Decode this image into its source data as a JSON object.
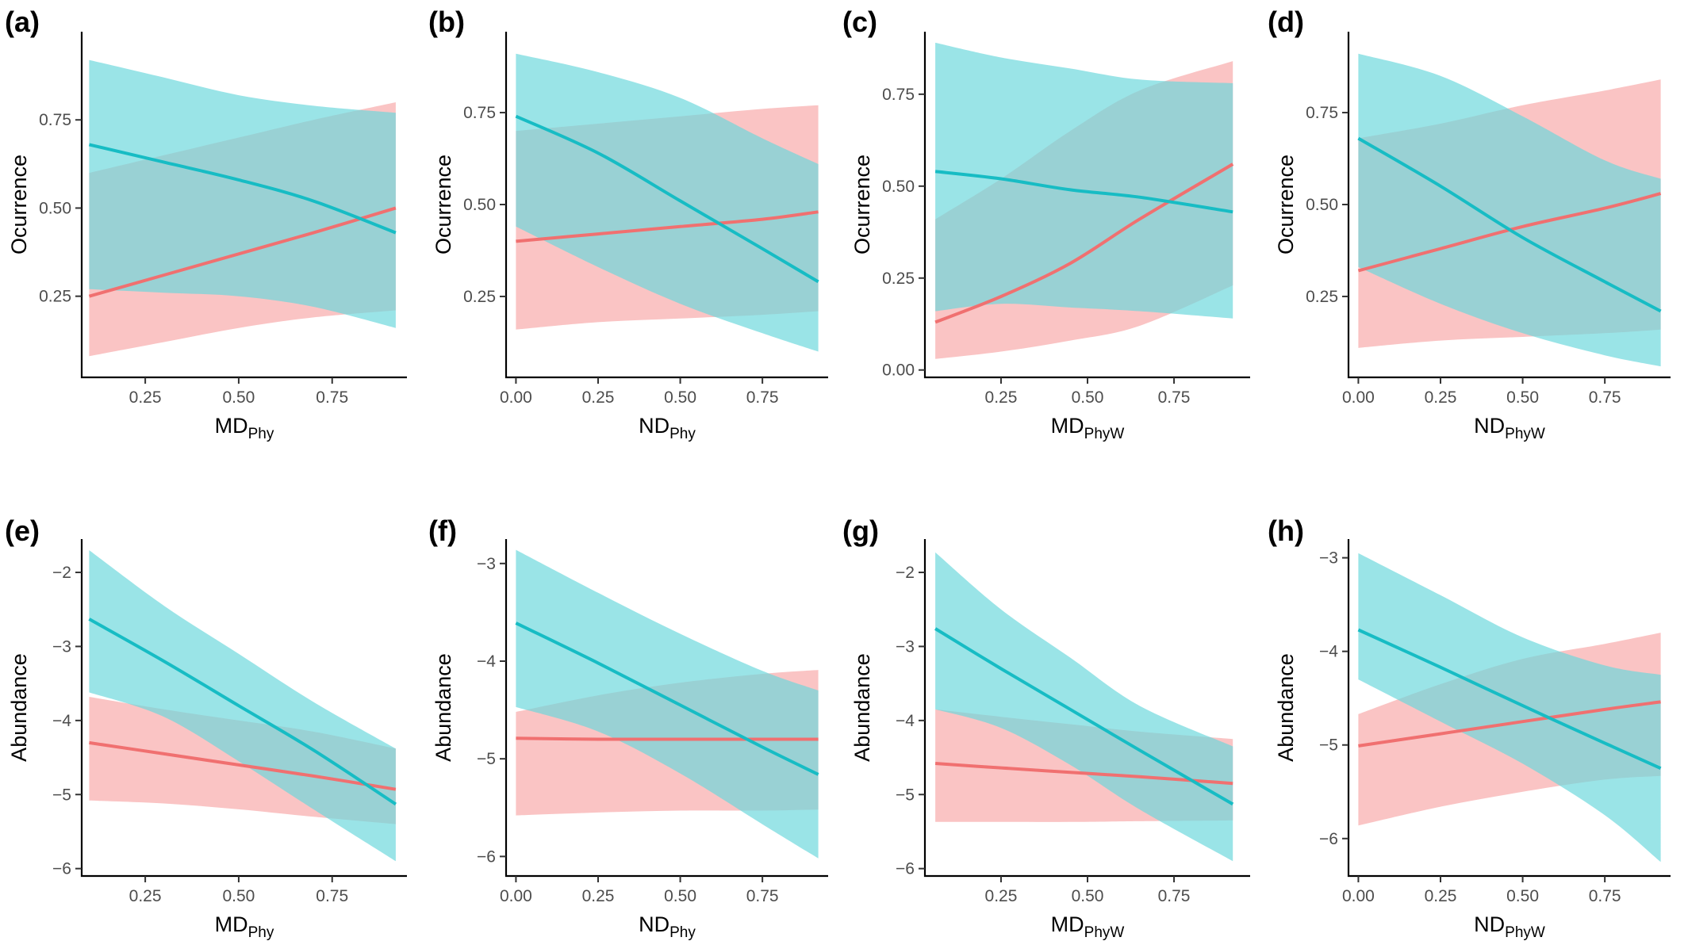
{
  "colors": {
    "series_a_line": "#f07070",
    "series_a_band": "#f8a8a8",
    "series_b_line": "#17bcc4",
    "series_b_band": "#6ad7dc"
  },
  "chart_data": [
    {
      "panel": "(a)",
      "type": "line",
      "xlabel": "MD",
      "xlabel_sub": "Phy",
      "ylabel": "Ocurrence",
      "xlim": [
        0.08,
        0.95
      ],
      "ylim": [
        0.02,
        1.0
      ],
      "xticks": [
        0.25,
        0.5,
        0.75
      ],
      "xtick_labels": [
        "0.25",
        "0.50",
        "0.75"
      ],
      "yticks": [
        0.25,
        0.5,
        0.75
      ],
      "ytick_labels": [
        "0.25",
        "0.50",
        "0.75"
      ],
      "series": [
        {
          "x": [
            0.1,
            0.3,
            0.5,
            0.7,
            0.92
          ],
          "y": [
            0.25,
            0.31,
            0.37,
            0.43,
            0.5
          ],
          "lower": [
            0.08,
            0.12,
            0.16,
            0.19,
            0.21
          ],
          "upper": [
            0.6,
            0.65,
            0.7,
            0.75,
            0.8
          ]
        },
        {
          "x": [
            0.1,
            0.3,
            0.5,
            0.7,
            0.92
          ],
          "y": [
            0.68,
            0.63,
            0.58,
            0.52,
            0.43
          ],
          "lower": [
            0.27,
            0.26,
            0.25,
            0.22,
            0.16
          ],
          "upper": [
            0.92,
            0.87,
            0.82,
            0.79,
            0.77
          ]
        }
      ]
    },
    {
      "panel": "(b)",
      "type": "line",
      "xlabel": "ND",
      "xlabel_sub": "Phy",
      "ylabel": "Ocurrence",
      "xlim": [
        -0.03,
        0.95
      ],
      "ylim": [
        0.03,
        0.97
      ],
      "xticks": [
        0.0,
        0.25,
        0.5,
        0.75
      ],
      "xtick_labels": [
        "0.00",
        "0.25",
        "0.50",
        "0.75"
      ],
      "yticks": [
        0.25,
        0.5,
        0.75
      ],
      "ytick_labels": [
        "0.25",
        "0.50",
        "0.75"
      ],
      "series": [
        {
          "x": [
            0.0,
            0.25,
            0.5,
            0.75,
            0.92
          ],
          "y": [
            0.4,
            0.42,
            0.44,
            0.46,
            0.48
          ],
          "lower": [
            0.16,
            0.18,
            0.19,
            0.2,
            0.21
          ],
          "upper": [
            0.7,
            0.72,
            0.74,
            0.76,
            0.77
          ]
        },
        {
          "x": [
            0.0,
            0.25,
            0.5,
            0.75,
            0.92
          ],
          "y": [
            0.74,
            0.64,
            0.51,
            0.38,
            0.29
          ],
          "lower": [
            0.44,
            0.33,
            0.23,
            0.15,
            0.1
          ],
          "upper": [
            0.91,
            0.86,
            0.79,
            0.68,
            0.61
          ]
        }
      ]
    },
    {
      "panel": "(c)",
      "type": "line",
      "xlabel": "MD",
      "xlabel_sub": "PhyW",
      "ylabel": "Ocurrence",
      "xlim": [
        0.03,
        0.97
      ],
      "ylim": [
        -0.02,
        0.92
      ],
      "xticks": [
        0.25,
        0.5,
        0.75
      ],
      "xtick_labels": [
        "0.25",
        "0.50",
        "0.75"
      ],
      "yticks": [
        0.0,
        0.25,
        0.5,
        0.75
      ],
      "ytick_labels": [
        "0.00",
        "0.25",
        "0.50",
        "0.75"
      ],
      "series": [
        {
          "x": [
            0.06,
            0.25,
            0.45,
            0.65,
            0.92
          ],
          "y": [
            0.13,
            0.2,
            0.29,
            0.41,
            0.56
          ],
          "lower": [
            0.03,
            0.05,
            0.08,
            0.12,
            0.23
          ],
          "upper": [
            0.41,
            0.52,
            0.65,
            0.76,
            0.84
          ]
        },
        {
          "x": [
            0.06,
            0.25,
            0.45,
            0.65,
            0.92
          ],
          "y": [
            0.54,
            0.52,
            0.49,
            0.47,
            0.43
          ],
          "lower": [
            0.16,
            0.18,
            0.17,
            0.16,
            0.14
          ],
          "upper": [
            0.89,
            0.85,
            0.82,
            0.79,
            0.78
          ]
        }
      ]
    },
    {
      "panel": "(d)",
      "type": "line",
      "xlabel": "ND",
      "xlabel_sub": "PhyW",
      "ylabel": "Ocurrence",
      "xlim": [
        -0.03,
        0.95
      ],
      "ylim": [
        0.03,
        0.97
      ],
      "xticks": [
        0.0,
        0.25,
        0.5,
        0.75
      ],
      "xtick_labels": [
        "0.00",
        "0.25",
        "0.50",
        "0.75"
      ],
      "yticks": [
        0.25,
        0.5,
        0.75
      ],
      "ytick_labels": [
        "0.25",
        "0.50",
        "0.75"
      ],
      "series": [
        {
          "x": [
            0.0,
            0.25,
            0.5,
            0.75,
            0.92
          ],
          "y": [
            0.32,
            0.38,
            0.44,
            0.49,
            0.53
          ],
          "lower": [
            0.11,
            0.13,
            0.14,
            0.15,
            0.16
          ],
          "upper": [
            0.68,
            0.72,
            0.77,
            0.81,
            0.84
          ]
        },
        {
          "x": [
            0.0,
            0.25,
            0.5,
            0.75,
            0.92
          ],
          "y": [
            0.68,
            0.55,
            0.41,
            0.29,
            0.21
          ],
          "lower": [
            0.33,
            0.23,
            0.15,
            0.09,
            0.06
          ],
          "upper": [
            0.91,
            0.85,
            0.74,
            0.62,
            0.57
          ]
        }
      ]
    },
    {
      "panel": "(e)",
      "type": "line",
      "xlabel": "MD",
      "xlabel_sub": "Phy",
      "ylabel": "Abundance",
      "xlim": [
        0.08,
        0.95
      ],
      "ylim": [
        -6.1,
        -1.55
      ],
      "xticks": [
        0.25,
        0.5,
        0.75
      ],
      "xtick_labels": [
        "0.25",
        "0.50",
        "0.75"
      ],
      "yticks": [
        -6,
        -5,
        -4,
        -3,
        -2
      ],
      "ytick_labels": [
        "−6",
        "−5",
        "−4",
        "−3",
        "−2"
      ],
      "series": [
        {
          "x": [
            0.1,
            0.3,
            0.5,
            0.7,
            0.92
          ],
          "y": [
            -4.3,
            -4.45,
            -4.6,
            -4.75,
            -4.93
          ],
          "lower": [
            -5.08,
            -5.12,
            -5.2,
            -5.3,
            -5.4
          ],
          "upper": [
            -3.68,
            -3.85,
            -4.0,
            -4.15,
            -4.38
          ]
        },
        {
          "x": [
            0.1,
            0.3,
            0.5,
            0.7,
            0.92
          ],
          "y": [
            -2.63,
            -3.2,
            -3.8,
            -4.4,
            -5.13
          ],
          "lower": [
            -3.62,
            -3.95,
            -4.55,
            -5.2,
            -5.9
          ],
          "upper": [
            -1.7,
            -2.45,
            -3.1,
            -3.75,
            -4.38
          ]
        }
      ]
    },
    {
      "panel": "(f)",
      "type": "line",
      "xlabel": "ND",
      "xlabel_sub": "Phy",
      "ylabel": "Abundance",
      "xlim": [
        -0.03,
        0.95
      ],
      "ylim": [
        -6.2,
        -2.75
      ],
      "xticks": [
        0.0,
        0.25,
        0.5,
        0.75
      ],
      "xtick_labels": [
        "0.00",
        "0.25",
        "0.50",
        "0.75"
      ],
      "yticks": [
        -6,
        -5,
        -4,
        -3
      ],
      "ytick_labels": [
        "−6",
        "−5",
        "−4",
        "−3"
      ],
      "series": [
        {
          "x": [
            0.0,
            0.25,
            0.5,
            0.75,
            0.92
          ],
          "y": [
            -4.79,
            -4.8,
            -4.8,
            -4.8,
            -4.8
          ],
          "lower": [
            -5.58,
            -5.55,
            -5.53,
            -5.53,
            -5.52
          ],
          "upper": [
            -4.52,
            -4.35,
            -4.22,
            -4.13,
            -4.09
          ]
        },
        {
          "x": [
            0.0,
            0.25,
            0.5,
            0.75,
            0.92
          ],
          "y": [
            -3.61,
            -4.02,
            -4.45,
            -4.88,
            -5.16
          ],
          "lower": [
            -4.47,
            -4.72,
            -5.15,
            -5.67,
            -6.02
          ],
          "upper": [
            -2.86,
            -3.3,
            -3.72,
            -4.1,
            -4.3
          ]
        }
      ]
    },
    {
      "panel": "(g)",
      "type": "line",
      "xlabel": "MD",
      "xlabel_sub": "PhyW",
      "ylabel": "Abundance",
      "xlim": [
        0.03,
        0.97
      ],
      "ylim": [
        -6.1,
        -1.55
      ],
      "xticks": [
        0.25,
        0.5,
        0.75
      ],
      "xtick_labels": [
        "0.25",
        "0.50",
        "0.75"
      ],
      "yticks": [
        -6,
        -5,
        -4,
        -3,
        -2
      ],
      "ytick_labels": [
        "−6",
        "−5",
        "−4",
        "−3",
        "−2"
      ],
      "series": [
        {
          "x": [
            0.06,
            0.25,
            0.45,
            0.65,
            0.92
          ],
          "y": [
            -4.58,
            -4.64,
            -4.7,
            -4.76,
            -4.85
          ],
          "lower": [
            -5.37,
            -5.37,
            -5.37,
            -5.36,
            -5.35
          ],
          "upper": [
            -3.85,
            -3.95,
            -4.05,
            -4.15,
            -4.25
          ]
        },
        {
          "x": [
            0.06,
            0.25,
            0.45,
            0.65,
            0.92
          ],
          "y": [
            -2.76,
            -3.3,
            -3.85,
            -4.4,
            -5.13
          ],
          "lower": [
            -3.85,
            -4.1,
            -4.6,
            -5.2,
            -5.9
          ],
          "upper": [
            -1.73,
            -2.5,
            -3.15,
            -3.8,
            -4.35
          ]
        }
      ]
    },
    {
      "panel": "(h)",
      "type": "line",
      "xlabel": "ND",
      "xlabel_sub": "PhyW",
      "ylabel": "Abundance",
      "xlim": [
        -0.03,
        0.95
      ],
      "ylim": [
        -6.4,
        -2.8
      ],
      "xticks": [
        0.0,
        0.25,
        0.5,
        0.75
      ],
      "xtick_labels": [
        "0.00",
        "0.25",
        "0.50",
        "0.75"
      ],
      "yticks": [
        -6,
        -5,
        -4,
        -3
      ],
      "ytick_labels": [
        "−6",
        "−5",
        "−4",
        "−3"
      ],
      "series": [
        {
          "x": [
            0.0,
            0.25,
            0.5,
            0.75,
            0.92
          ],
          "y": [
            -5.01,
            -4.88,
            -4.75,
            -4.62,
            -4.54
          ],
          "lower": [
            -5.86,
            -5.66,
            -5.5,
            -5.37,
            -5.33
          ],
          "upper": [
            -4.67,
            -4.35,
            -4.08,
            -3.92,
            -3.8
          ]
        },
        {
          "x": [
            0.0,
            0.25,
            0.5,
            0.75,
            0.92
          ],
          "y": [
            -3.77,
            -4.17,
            -4.58,
            -4.98,
            -5.25
          ],
          "lower": [
            -4.3,
            -4.75,
            -5.2,
            -5.75,
            -6.25
          ],
          "upper": [
            -2.95,
            -3.4,
            -3.85,
            -4.15,
            -4.25
          ]
        }
      ]
    }
  ]
}
